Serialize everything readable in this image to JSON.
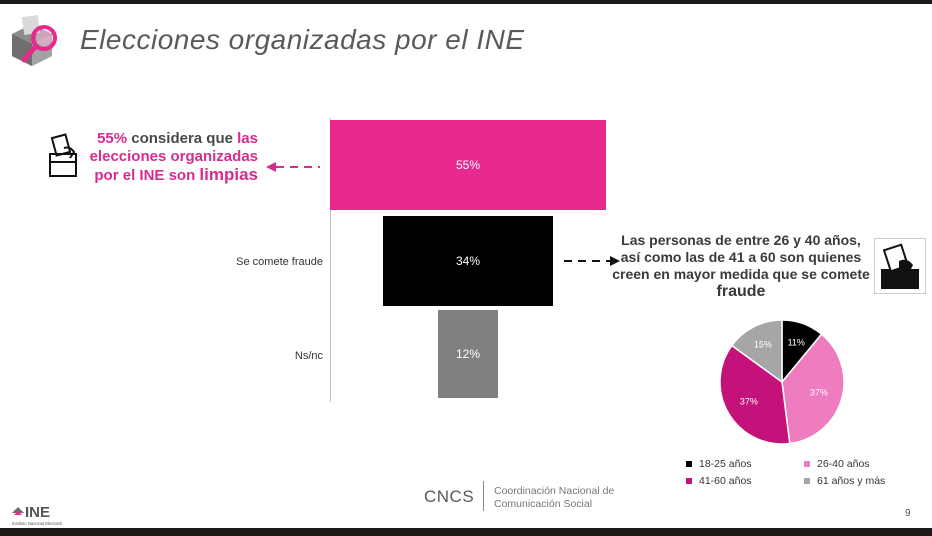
{
  "header": {
    "title": "Elecciones organizadas por el INE"
  },
  "chart_data": [
    {
      "type": "bar",
      "orientation": "horizontal-centered",
      "categories": [
        "",
        "Se comete fraude",
        "Ns/nc"
      ],
      "values": [
        55,
        34,
        12
      ],
      "value_labels": [
        "55%",
        "34%",
        "12%"
      ],
      "colors": [
        "#e8288c",
        "#000000",
        "#808080"
      ],
      "xlim": [
        0,
        55
      ]
    },
    {
      "type": "pie",
      "slices": [
        {
          "label": "18-25 años",
          "value": 11,
          "value_label": "11%",
          "color": "#000000"
        },
        {
          "label": "26-40 años",
          "value": 37,
          "value_label": "37%",
          "color": "#f07cc0"
        },
        {
          "label": "41-60 años",
          "value": 37,
          "value_label": "37%",
          "color": "#c4127a"
        },
        {
          "label": "61 años y más",
          "value": 15,
          "value_label": "15%",
          "color": "#a6a6a6"
        }
      ],
      "legend_position": "bottom"
    }
  ],
  "callout_left": {
    "part1": "55%",
    "part2": " considera que ",
    "part3": "las elecciones organizadas por el INE son ",
    "part4": "limpias"
  },
  "callout_right": {
    "text": "Las personas de entre 26 y 40 años, así como las de 41 a 60 son quienes creen en mayor medida que se comete ",
    "emphasis": "fraude"
  },
  "footer": {
    "logo_text": "INE",
    "logo_subtext": "Instituto Nacional Electoral",
    "org_abbr": "CNCS",
    "org_line1": "Coordinación Nacional de",
    "org_line2": "Comunicación Social",
    "page_number": "9"
  },
  "icons": {
    "header_icon": "ballot-magnifier-icon",
    "left_icon": "ballot-box-icon",
    "right_icon": "ballot-box-icon"
  },
  "colors": {
    "accent": "#d62b8f",
    "title_gray": "#5a5a5a"
  }
}
